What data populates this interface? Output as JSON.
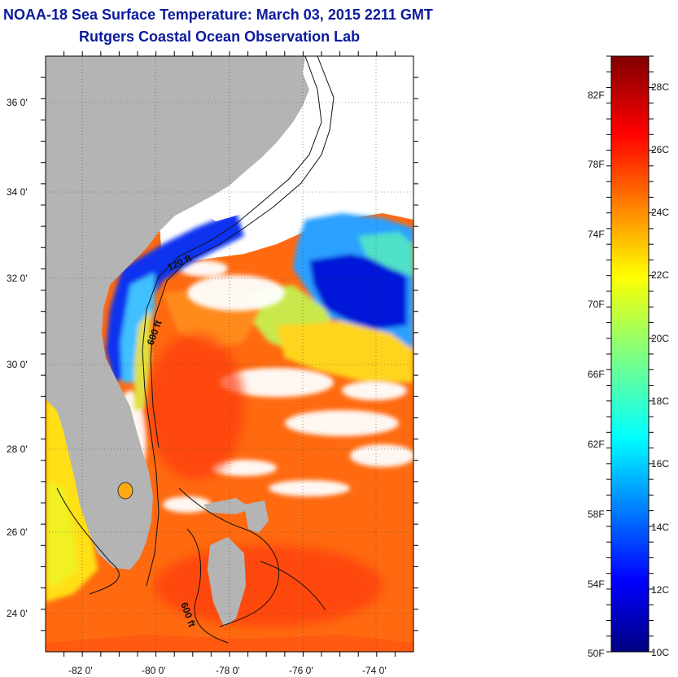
{
  "title": "NOAA-18 Sea Surface Temperature:  March 03, 2015 2211 GMT",
  "subtitle": "Rutgers Coastal Ocean Observation Lab",
  "map": {
    "lat_labels": [
      "36 0'",
      "34 0'",
      "32 0'",
      "30 0'",
      "28 0'",
      "26 0'",
      "24 0'"
    ],
    "lat_values": [
      36,
      34,
      32,
      30,
      28,
      26,
      24
    ],
    "lon_labels": [
      "-82 0'",
      "-80 0'",
      "-78 0'",
      "-76 0'",
      "-74 0'"
    ],
    "lon_values": [
      -82,
      -80,
      -78,
      -76,
      -74
    ],
    "lat_range": [
      23,
      37
    ],
    "lon_range": [
      -83,
      -73
    ],
    "contour_labels": [
      "120 ft",
      "600 ft",
      "600 ft"
    ],
    "land_color": "#b4b4b4",
    "cloud_color": "#ffffff"
  },
  "colorbar": {
    "f_labels": [
      "82F",
      "78F",
      "74F",
      "70F",
      "66F",
      "62F",
      "58F",
      "54F",
      "50F"
    ],
    "c_labels": [
      "28C",
      "26C",
      "24C",
      "22C",
      "20C",
      "18C",
      "16C",
      "14C",
      "12C",
      "10C"
    ],
    "range_c": [
      10,
      29
    ],
    "colormap": "jet"
  }
}
